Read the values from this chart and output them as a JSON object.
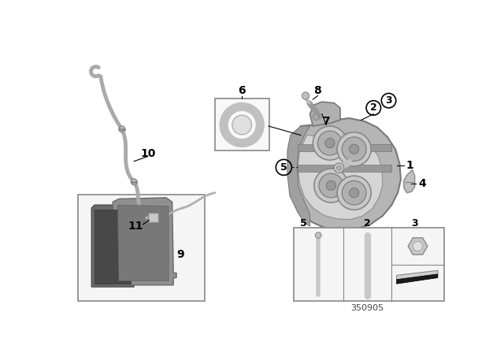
{
  "background_color": "#ffffff",
  "part_number": "350905",
  "caliper_color": "#b0b0b0",
  "caliper_edge": "#787878",
  "caliper_dark": "#888888",
  "caliper_light": "#cccccc",
  "pad_dark": "#555555",
  "pad_mid": "#777777",
  "pad_light": "#999999",
  "line_color": "#aaaaaa",
  "box_edge": "#888888"
}
